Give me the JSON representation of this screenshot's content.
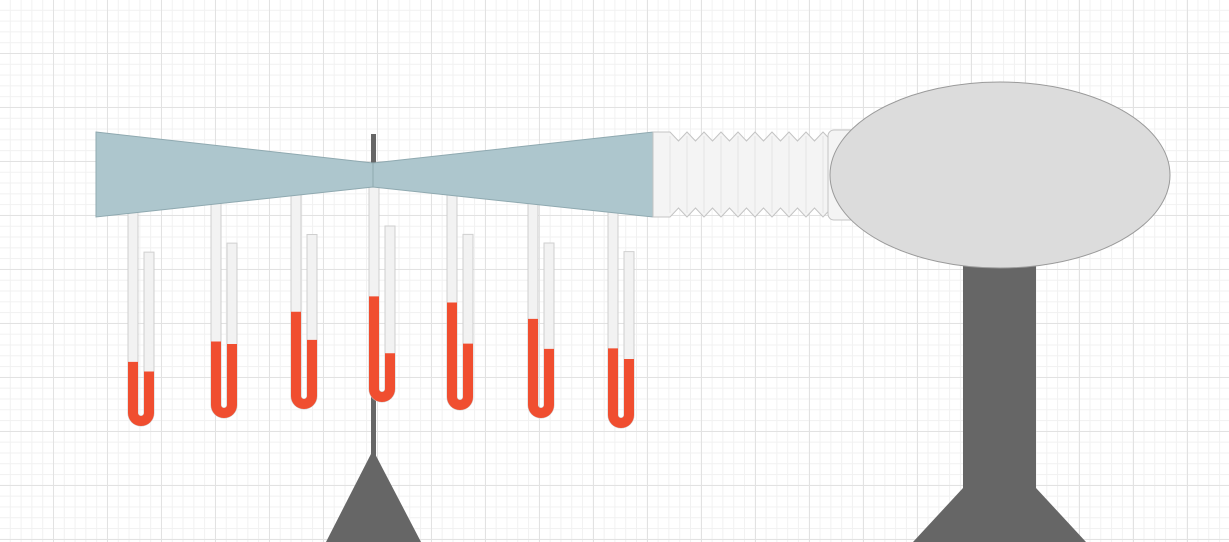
{
  "colors": {
    "duct": "#adc6cd",
    "duct_stroke": "#8fa9b0",
    "tube_glass": "#f2f2f2",
    "tube_stroke": "#cfcfcf",
    "liquid": "#f04e30",
    "stand": "#666666",
    "blower": "#dcdcdc",
    "blower_stroke": "#9a9a9a",
    "hose": "#f4f4f4"
  },
  "components": [
    "venturi-tube",
    "pressure-manometers",
    "blower",
    "flexible-hose",
    "support-stand"
  ],
  "manometers": [
    {
      "left_level": 0.76,
      "right_level": 0.76
    },
    {
      "left_level": 0.69,
      "right_level": 0.63
    },
    {
      "left_level": 0.57,
      "right_level": 0.64
    },
    {
      "left_level": 0.51,
      "right_level": 0.76
    },
    {
      "left_level": 0.52,
      "right_level": 0.66
    },
    {
      "left_level": 0.58,
      "right_level": 0.66
    },
    {
      "left_level": 0.69,
      "right_level": 0.68
    }
  ]
}
